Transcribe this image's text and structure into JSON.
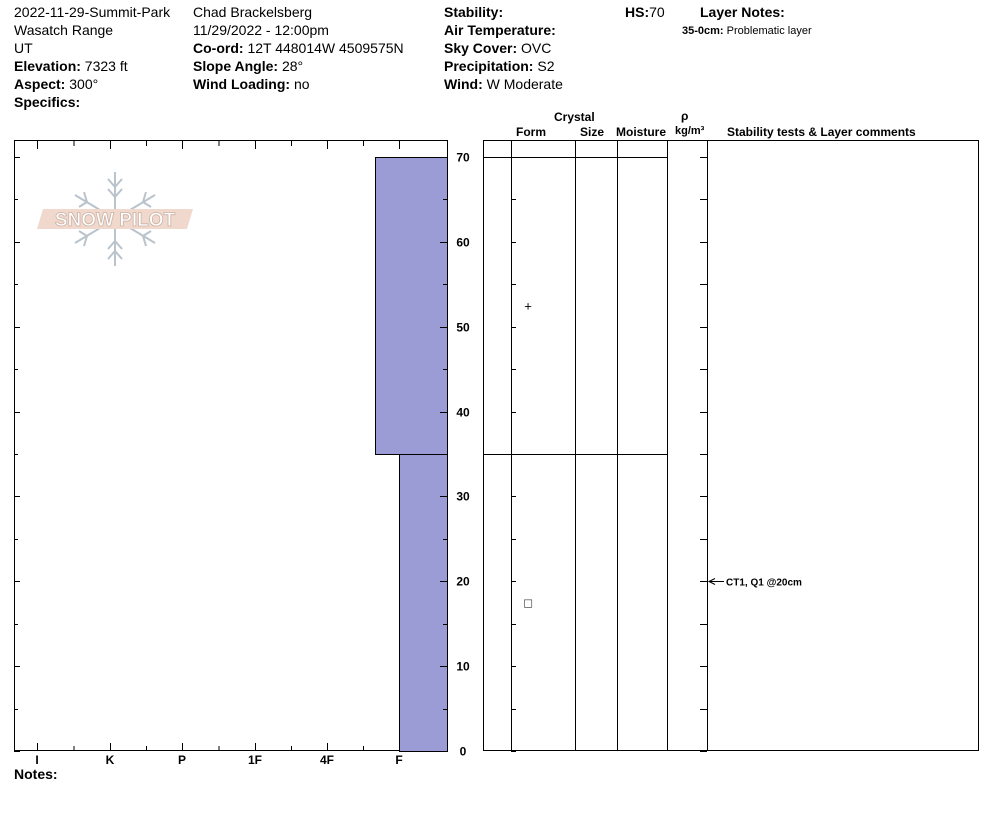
{
  "header": {
    "col1": {
      "date_location": "2022-11-29-Summit-Park",
      "range": "Wasatch Range",
      "state": "UT",
      "elevation_label": "Elevation:",
      "elevation_value": "7323 ft",
      "aspect_label": "Aspect:",
      "aspect_value": "300°",
      "specifics_label": "Specifics:"
    },
    "col2": {
      "observer": "Chad Brackelsberg",
      "datetime": "11/29/2022 - 12:00pm",
      "coord_label": "Co-ord:",
      "coord_value": "12T 448014W 4509575N",
      "slope_label": "Slope Angle:",
      "slope_value": "28°",
      "wind_loading_label": "Wind Loading:",
      "wind_loading_value": "no"
    },
    "col3": {
      "stability_label": "Stability:",
      "air_temp_label": "Air Temperature:",
      "sky_label": "Sky Cover:",
      "sky_value": "OVC",
      "precip_label": "Precipitation:",
      "precip_value": "S2",
      "wind_label": "Wind:",
      "wind_value": "W Moderate"
    },
    "col4": {
      "hs_label": "HS:",
      "hs_value": "70",
      "layer_notes_label": "Layer Notes:",
      "layer_note_depth": "35-0cm:",
      "layer_note_text": "Problematic layer"
    }
  },
  "table_headers": {
    "crystal": "Crystal",
    "form": "Form",
    "size": "Size",
    "moisture": "Moisture",
    "rho": "ρ",
    "density_unit": "kg/m³",
    "stability_comments": "Stability tests & Layer comments"
  },
  "logo_text": "SNOW PILOT",
  "notes_label": "Notes:",
  "chart_data": {
    "type": "bar",
    "title": "",
    "xlabel": "",
    "ylabel": "",
    "ylim": [
      0,
      70
    ],
    "y_ticks": [
      "0",
      "10",
      "20",
      "30",
      "40",
      "50",
      "60",
      "70"
    ],
    "hardness_scale": [
      "I",
      "K",
      "P",
      "1F",
      "4F",
      "F"
    ],
    "layers": [
      {
        "top_cm": 70,
        "bottom_cm": 35,
        "hardness": "F+"
      },
      {
        "top_cm": 35,
        "bottom_cm": 0,
        "hardness": "F"
      }
    ],
    "grain_symbols": [
      {
        "height_cm": 52.5,
        "symbol": "+"
      },
      {
        "height_cm": 17.5,
        "symbol": "□"
      }
    ],
    "stability_tests": [
      {
        "height_cm": 20,
        "text": "CT1, Q1 @20cm"
      }
    ],
    "bar_color": "#9b9bd6"
  }
}
